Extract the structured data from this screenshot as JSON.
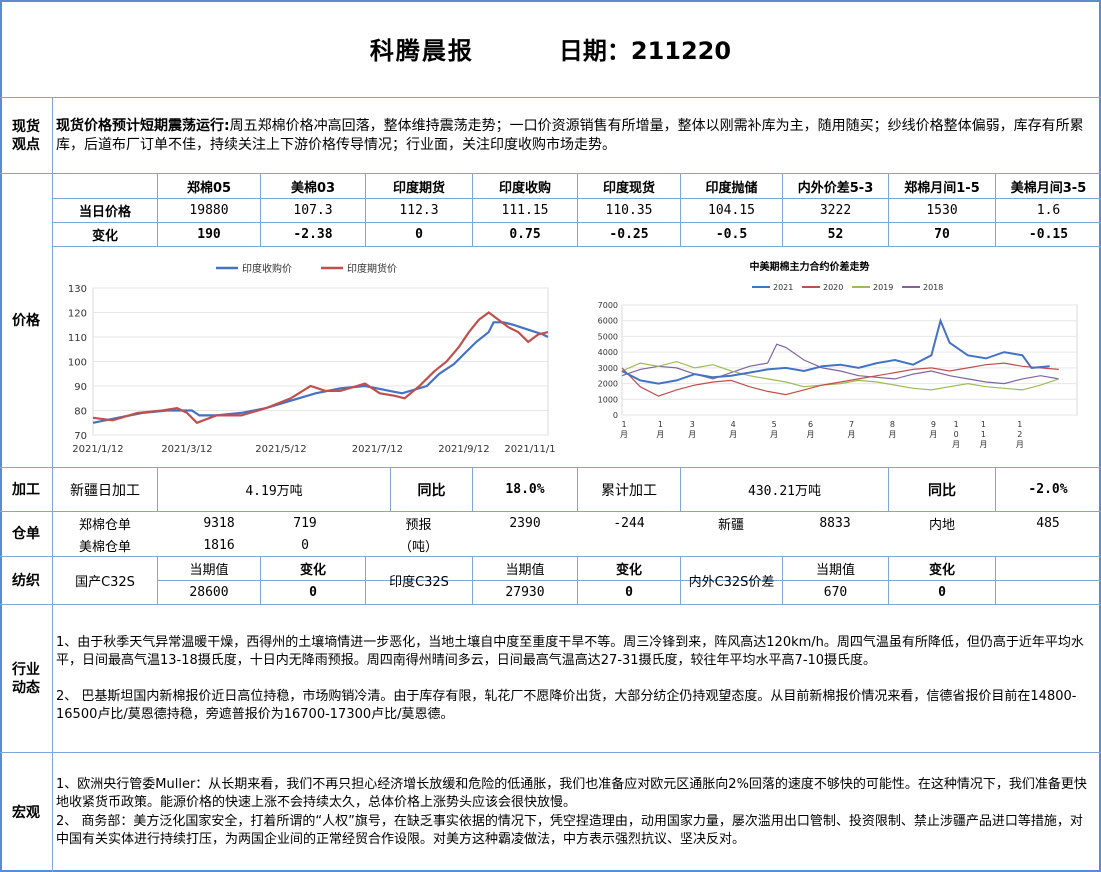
{
  "header": {
    "title": "科腾晨报",
    "date_label": "日期：211220"
  },
  "sections": {
    "spot": "现货\n观点",
    "price": "价格",
    "process": "加工",
    "warehouse": "仓单",
    "textile": "纺织",
    "industry": "行业\n动态",
    "macro": "宏观"
  },
  "spot": {
    "lead": "现货价格预计短期震荡运行:",
    "body": "周五郑棉价格冲高回落，整体维持震荡走势；一口价资源销售有所增量，整体以刚需补库为主，随用随买；纱线价格整体偏弱，库存有所累库，后道布厂订单不佳，持续关注上下游价格传导情况；行业面，关注印度收购市场走势。"
  },
  "price_table": {
    "headers": [
      "郑棉05",
      "美棉03",
      "印度期货",
      "印度收购",
      "印度现货",
      "印度抛储",
      "内外价差5-3",
      "郑棉月间1-5",
      "美棉月间3-5"
    ],
    "row1_label": "当日价格",
    "row1": [
      "19880",
      "107.3",
      "112.3",
      "111.15",
      "110.35",
      "104.15",
      "3222",
      "1530",
      "1.6"
    ],
    "row2_label": "变化",
    "row2": [
      "190",
      "-2.38",
      "0",
      "0.75",
      "-0.25",
      "-0.5",
      "52",
      "70",
      "-0.15"
    ]
  },
  "chart_data": [
    {
      "type": "line",
      "legend": [
        "印度收购价",
        "印度期货价"
      ],
      "x_ticks": [
        "2021/1/12",
        "2021/3/12",
        "2021/5/12",
        "2021/7/12",
        "2021/9/12",
        "2021/11/12"
      ],
      "ylim": [
        70,
        130
      ],
      "y_ticks": [
        "70",
        "80",
        "90",
        "100",
        "110",
        "120",
        "130"
      ],
      "series": [
        {
          "name": "印度收购价",
          "color": "#4472c4",
          "values": [
            [
              0,
              75
            ],
            [
              10,
              77
            ],
            [
              20,
              79
            ],
            [
              30,
              80
            ],
            [
              40,
              80
            ],
            [
              43,
              78
            ],
            [
              50,
              78
            ],
            [
              60,
              79
            ],
            [
              70,
              81
            ],
            [
              80,
              84
            ],
            [
              90,
              87
            ],
            [
              100,
              89
            ],
            [
              110,
              90
            ],
            [
              120,
              88
            ],
            [
              125,
              87
            ],
            [
              135,
              90
            ],
            [
              140,
              95
            ],
            [
              146,
              99
            ],
            [
              150,
              103
            ],
            [
              155,
              108
            ],
            [
              160,
              112
            ],
            [
              162,
              116
            ],
            [
              166,
              116
            ],
            [
              170,
              115
            ],
            [
              176,
              113
            ],
            [
              182,
              111
            ],
            [
              184,
              110
            ]
          ]
        },
        {
          "name": "印度期货价",
          "color": "#c0504d",
          "values": [
            [
              0,
              77
            ],
            [
              8,
              76
            ],
            [
              18,
              79
            ],
            [
              28,
              80
            ],
            [
              34,
              81
            ],
            [
              38,
              79
            ],
            [
              42,
              75
            ],
            [
              50,
              78
            ],
            [
              60,
              78
            ],
            [
              70,
              81
            ],
            [
              80,
              85
            ],
            [
              88,
              90
            ],
            [
              94,
              88
            ],
            [
              100,
              88
            ],
            [
              110,
              91
            ],
            [
              116,
              87
            ],
            [
              122,
              86
            ],
            [
              126,
              85
            ],
            [
              132,
              90
            ],
            [
              138,
              96
            ],
            [
              143,
              100
            ],
            [
              148,
              106
            ],
            [
              152,
              112
            ],
            [
              156,
              117
            ],
            [
              160,
              120
            ],
            [
              164,
              117
            ],
            [
              168,
              114
            ],
            [
              172,
              112
            ],
            [
              176,
              108
            ],
            [
              180,
              111
            ],
            [
              184,
              112
            ]
          ]
        }
      ]
    },
    {
      "type": "line",
      "title": "中美期棉主力合约价差走势",
      "legend": [
        "2021",
        "2020",
        "2019",
        "2018"
      ],
      "ylim": [
        0,
        7000
      ],
      "y_ticks": [
        "0",
        "1000",
        "2000",
        "3000",
        "4000",
        "5000",
        "6000",
        "7000"
      ],
      "x_ticks": [
        "1\n月",
        "1\n月",
        "3\n月",
        "4\n月",
        "5\n月",
        "6\n月",
        "7\n月",
        "8\n月",
        "9\n月",
        "1\n0\n月",
        "1\n1\n月",
        "1\n2\n月"
      ],
      "series": [
        {
          "name": "2021",
          "color": "#4472c4",
          "values": [
            [
              0,
              2800
            ],
            [
              4,
              2200
            ],
            [
              8,
              2000
            ],
            [
              12,
              2200
            ],
            [
              16,
              2600
            ],
            [
              20,
              2400
            ],
            [
              24,
              2500
            ],
            [
              28,
              2700
            ],
            [
              32,
              2900
            ],
            [
              36,
              3000
            ],
            [
              40,
              2800
            ],
            [
              44,
              3100
            ],
            [
              48,
              3200
            ],
            [
              52,
              3000
            ],
            [
              56,
              3300
            ],
            [
              60,
              3500
            ],
            [
              64,
              3200
            ],
            [
              68,
              3800
            ],
            [
              70,
              6000
            ],
            [
              72,
              4600
            ],
            [
              76,
              3800
            ],
            [
              80,
              3600
            ],
            [
              84,
              4000
            ],
            [
              88,
              3800
            ],
            [
              90,
              3000
            ],
            [
              94,
              3100
            ]
          ]
        },
        {
          "name": "2020",
          "color": "#c0504d",
          "values": [
            [
              0,
              3000
            ],
            [
              4,
              1800
            ],
            [
              8,
              1200
            ],
            [
              12,
              1600
            ],
            [
              16,
              1900
            ],
            [
              20,
              2100
            ],
            [
              24,
              2200
            ],
            [
              28,
              1800
            ],
            [
              32,
              1500
            ],
            [
              36,
              1300
            ],
            [
              40,
              1600
            ],
            [
              44,
              1900
            ],
            [
              48,
              2100
            ],
            [
              52,
              2300
            ],
            [
              56,
              2500
            ],
            [
              60,
              2700
            ],
            [
              64,
              2900
            ],
            [
              68,
              3000
            ],
            [
              72,
              2800
            ],
            [
              76,
              3000
            ],
            [
              80,
              3200
            ],
            [
              84,
              3300
            ],
            [
              88,
              3100
            ],
            [
              92,
              3000
            ],
            [
              96,
              2900
            ]
          ]
        },
        {
          "name": "2019",
          "color": "#9bbb59",
          "values": [
            [
              0,
              2800
            ],
            [
              4,
              3300
            ],
            [
              8,
              3100
            ],
            [
              12,
              3400
            ],
            [
              16,
              3000
            ],
            [
              20,
              3200
            ],
            [
              24,
              2800
            ],
            [
              28,
              2500
            ],
            [
              32,
              2300
            ],
            [
              36,
              2100
            ],
            [
              40,
              1800
            ],
            [
              44,
              1900
            ],
            [
              48,
              2000
            ],
            [
              52,
              2200
            ],
            [
              56,
              2100
            ],
            [
              60,
              1900
            ],
            [
              64,
              1700
            ],
            [
              68,
              1600
            ],
            [
              72,
              1800
            ],
            [
              76,
              2000
            ],
            [
              80,
              1800
            ],
            [
              84,
              1700
            ],
            [
              88,
              1600
            ],
            [
              92,
              1900
            ],
            [
              96,
              2300
            ]
          ]
        },
        {
          "name": "2018",
          "color": "#8064a2",
          "values": [
            [
              0,
              2500
            ],
            [
              4,
              2900
            ],
            [
              8,
              3100
            ],
            [
              12,
              3000
            ],
            [
              16,
              2600
            ],
            [
              20,
              2300
            ],
            [
              24,
              2700
            ],
            [
              28,
              3100
            ],
            [
              32,
              3300
            ],
            [
              34,
              4500
            ],
            [
              36,
              4300
            ],
            [
              40,
              3500
            ],
            [
              44,
              3000
            ],
            [
              48,
              2800
            ],
            [
              52,
              2500
            ],
            [
              56,
              2400
            ],
            [
              60,
              2300
            ],
            [
              64,
              2600
            ],
            [
              68,
              2800
            ],
            [
              72,
              2500
            ],
            [
              76,
              2300
            ],
            [
              80,
              2100
            ],
            [
              84,
              2000
            ],
            [
              88,
              2300
            ],
            [
              92,
              2500
            ],
            [
              96,
              2300
            ]
          ]
        }
      ]
    }
  ],
  "process": {
    "xj_label": "新疆日加工",
    "xj_value": "4.19万吨",
    "yoy_label": "同比",
    "yoy_value": "18.0%",
    "cum_label": "累计加工",
    "cum_value": "430.21万吨",
    "yoy2_label": "同比",
    "yoy2_value": "-2.0%"
  },
  "warehouse": {
    "zm_label": "郑棉仓单",
    "zm_value": "9318",
    "zm_change": "719",
    "forecast_label": "预报",
    "forecast_value": "2390",
    "forecast_change": "-244",
    "xj_label": "新疆",
    "xj_value": "8833",
    "nd_label": "内地",
    "nd_value": "485",
    "mm_label": "美棉仓单",
    "mm_value": "1816",
    "mm_change": "0",
    "unit": "（吨）"
  },
  "textile": {
    "dom_label": "国产C32S",
    "cur_label": "当期值",
    "chg_label": "变化",
    "dom_value": "28600",
    "dom_change": "0",
    "ind_label": "印度C32S",
    "ind_value": "27930",
    "ind_change": "0",
    "spread_label": "内外C32S价差",
    "spread_value": "670",
    "spread_change": "0"
  },
  "industry": {
    "p1": "1、由于秋季天气异常温暖干燥，西得州的土壤墒情进一步恶化，当地土壤自中度至重度干旱不等。周三冷锋到来，阵风高达120km/h。周四气温虽有所降低，但仍高于近年平均水平，日间最高气温13-18摄氏度，十日内无降雨预报。周四南得州晴间多云，日间最高气温高达27-31摄氏度，较往年平均水平高7-10摄氏度。",
    "p2": "2、 巴基斯坦国内新棉报价近日高位持稳，市场购销冷清。由于库存有限，轧花厂不愿降价出货，大部分纺企仍持观望态度。从目前新棉报价情况来看，信德省报价目前在14800-16500卢比/莫恩德持稳，旁遮普报价为16700-17300卢比/莫恩德。"
  },
  "macro": {
    "p1": "1、欧洲央行管委Muller：从长期来看，我们不再只担心经济增长放缓和危险的低通胀，我们也准备应对欧元区通胀向2%回落的速度不够快的可能性。在这种情况下，我们准备更快地收紧货币政策。能源价格的快速上涨不会持续太久，总体价格上涨势头应该会很快放慢。",
    "p2": "2、 商务部：美方泛化国家安全，打着所谓的“人权”旗号，在缺乏事实依据的情况下，凭空捏造理由，动用国家力量，屡次滥用出口管制、投资限制、禁止涉疆产品进口等措施，对中国有关实体进行持续打压，为两国企业间的正常经贸合作设限。对美方这种霸凌做法，中方表示强烈抗议、坚决反对。"
  }
}
